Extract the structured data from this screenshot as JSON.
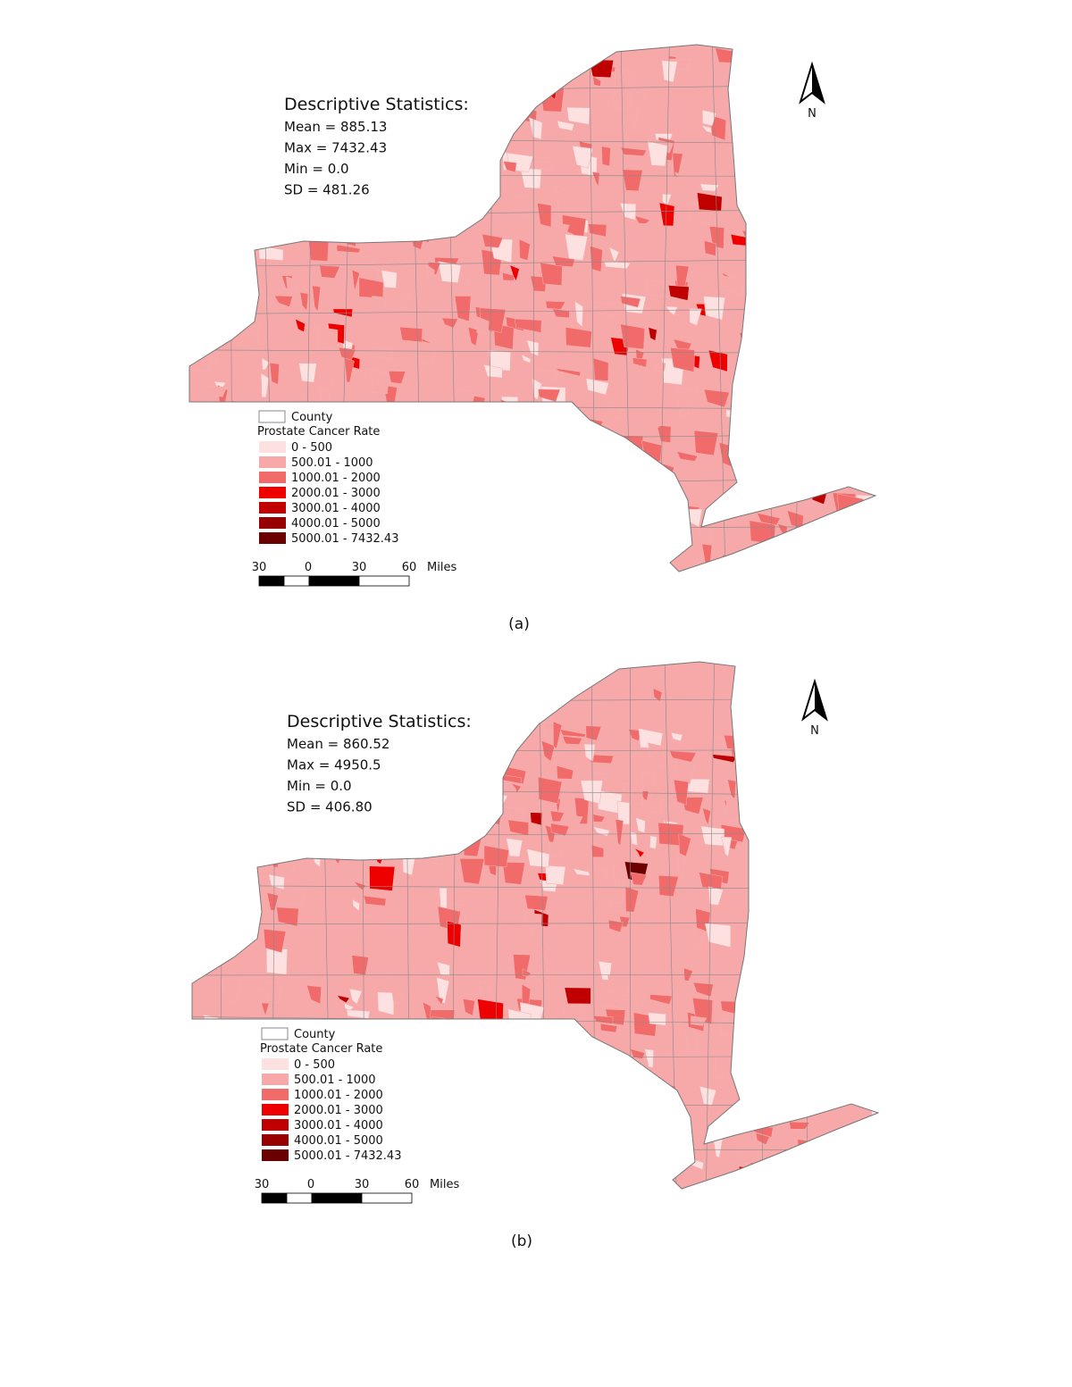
{
  "panels": [
    {
      "stats": {
        "title": "Descriptive Statistics:",
        "lines": [
          "Mean = 885.13",
          "Max = 7432.43",
          "Min = 0.0",
          "SD = 481.26"
        ]
      },
      "north": "N",
      "legend": {
        "county": "County",
        "title": "Prostate Cancer Rate",
        "classes": [
          {
            "label": "0 - 500",
            "color": "#fde0e0"
          },
          {
            "label": "500.01 - 1000",
            "color": "#f7a9a9"
          },
          {
            "label": "1000.01 - 2000",
            "color": "#f26b6b"
          },
          {
            "label": "2000.01 - 3000",
            "color": "#ee0000"
          },
          {
            "label": "3000.01 - 4000",
            "color": "#c00000"
          },
          {
            "label": "4000.01 - 5000",
            "color": "#960000"
          },
          {
            "label": "5000.01 - 7432.43",
            "color": "#6a0000"
          }
        ]
      },
      "scale": {
        "labels": [
          "30",
          "0",
          "30",
          "60"
        ],
        "unit": "Miles"
      },
      "caption": "(a)"
    },
    {
      "stats": {
        "title": "Descriptive Statistics:",
        "lines": [
          "Mean = 860.52",
          "Max = 4950.5",
          "Min = 0.0",
          "SD = 406.80"
        ]
      },
      "north": "N",
      "legend": {
        "county": "County",
        "title": "Prostate Cancer Rate",
        "classes": [
          {
            "label": "0 - 500",
            "color": "#fde0e0"
          },
          {
            "label": "500.01 - 1000",
            "color": "#f7a9a9"
          },
          {
            "label": "1000.01 - 2000",
            "color": "#f26b6b"
          },
          {
            "label": "2000.01 - 3000",
            "color": "#ee0000"
          },
          {
            "label": "3000.01 - 4000",
            "color": "#c00000"
          },
          {
            "label": "4000.01 - 5000",
            "color": "#960000"
          },
          {
            "label": "5000.01 - 7432.43",
            "color": "#6a0000"
          }
        ]
      },
      "scale": {
        "labels": [
          "30",
          "0",
          "30",
          "60"
        ],
        "unit": "Miles"
      },
      "caption": "(b)"
    }
  ]
}
